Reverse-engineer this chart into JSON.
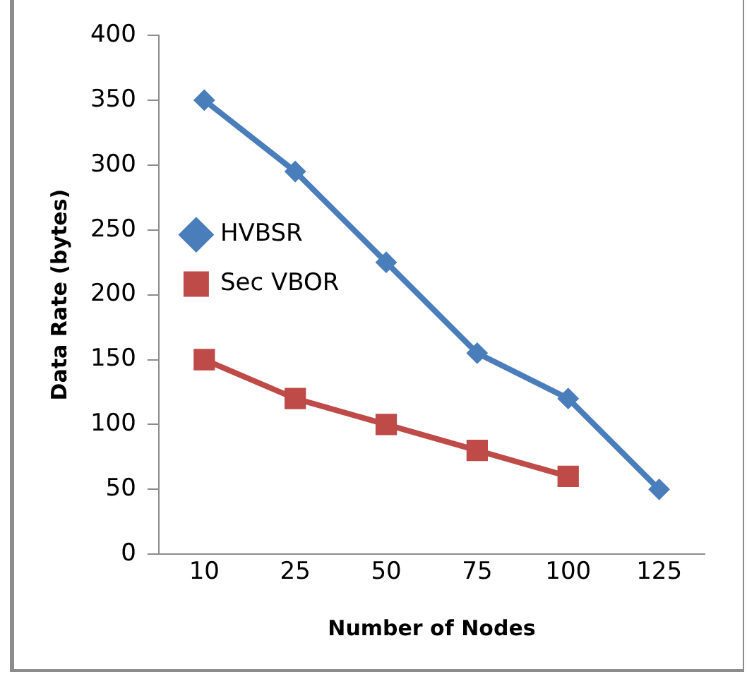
{
  "chart_data": {
    "type": "line",
    "xlabel": "Number of Nodes",
    "ylabel": "Data Rate (bytes)",
    "categories": [
      "10",
      "25",
      "50",
      "75",
      "100",
      "125"
    ],
    "series": [
      {
        "name": "HVBSR",
        "color": "#4a7ebb",
        "marker": "diamond",
        "values": [
          350,
          295,
          225,
          155,
          120,
          50
        ]
      },
      {
        "name": "Sec VBOR",
        "color": "#be4b48",
        "marker": "square",
        "values": [
          150,
          120,
          100,
          80,
          60,
          null
        ]
      }
    ],
    "ylim": [
      0,
      400
    ],
    "yticks": [
      0,
      50,
      100,
      150,
      200,
      250,
      300,
      350,
      400
    ],
    "grid": false,
    "legend": "top",
    "line_style": "solid"
  }
}
